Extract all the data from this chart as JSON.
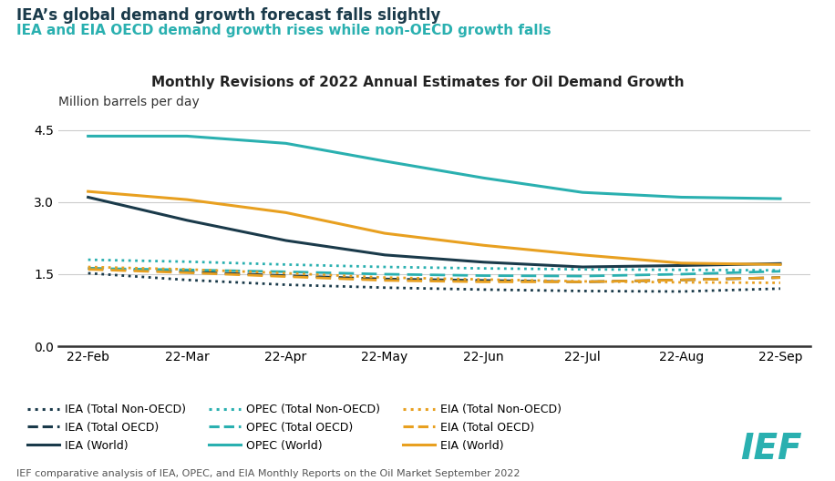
{
  "title": "Monthly Revisions of 2022 Annual Estimates for Oil Demand Growth",
  "subtitle1": "IEA’s global demand growth forecast falls slightly",
  "subtitle2": "IEA and EIA OECD demand growth rises while non-OECD growth falls",
  "ylabel": "Million barrels per day",
  "footnote": "IEF comparative analysis of IEA, OPEC, and EIA Monthly Reports on the Oil Market September 2022",
  "x_labels": [
    "22-Feb",
    "22-Mar",
    "22-Apr",
    "22-May",
    "22-Jun",
    "22-Jul",
    "22-Aug",
    "22-Sep"
  ],
  "ylim": [
    0.0,
    4.8
  ],
  "yticks": [
    0.0,
    1.5,
    3.0,
    4.5
  ],
  "background_color": "#ffffff",
  "IEA_NonOECD": [
    1.52,
    1.38,
    1.28,
    1.22,
    1.18,
    1.15,
    1.14,
    1.2
  ],
  "IEA_OECD": [
    1.62,
    1.55,
    1.47,
    1.4,
    1.37,
    1.34,
    1.38,
    1.43
  ],
  "IEA_World": [
    3.1,
    2.62,
    2.2,
    1.9,
    1.75,
    1.65,
    1.68,
    1.72
  ],
  "OPEC_NonOECD": [
    1.8,
    1.76,
    1.7,
    1.65,
    1.62,
    1.6,
    1.59,
    1.58
  ],
  "OPEC_OECD": [
    1.62,
    1.59,
    1.55,
    1.5,
    1.47,
    1.46,
    1.5,
    1.56
  ],
  "OPEC_World": [
    4.37,
    4.37,
    4.22,
    3.85,
    3.5,
    3.2,
    3.1,
    3.07
  ],
  "EIA_NonOECD": [
    1.65,
    1.6,
    1.52,
    1.43,
    1.39,
    1.35,
    1.33,
    1.32
  ],
  "EIA_OECD": [
    1.6,
    1.53,
    1.45,
    1.37,
    1.34,
    1.34,
    1.38,
    1.43
  ],
  "EIA_World": [
    3.22,
    3.05,
    2.78,
    2.35,
    2.1,
    1.9,
    1.73,
    1.7
  ],
  "color_IEA": "#1a3a4a",
  "color_OPEC": "#2ab0b0",
  "color_EIA": "#e8a020",
  "title_fontsize": 11,
  "subtitle1_fontsize": 12,
  "subtitle2_fontsize": 11,
  "axis_fontsize": 10,
  "legend_fontsize": 9,
  "footnote_fontsize": 8
}
